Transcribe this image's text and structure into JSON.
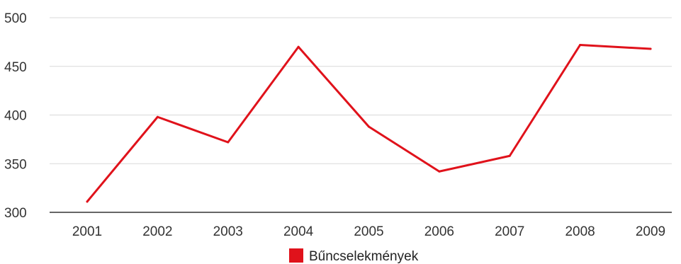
{
  "chart_data": {
    "type": "line",
    "x": [
      "2001",
      "2002",
      "2003",
      "2004",
      "2005",
      "2006",
      "2007",
      "2008",
      "2009"
    ],
    "series": [
      {
        "name": "Bűncselekmények",
        "values": [
          311,
          398,
          372,
          470,
          388,
          342,
          358,
          472,
          468
        ]
      }
    ],
    "ylim": [
      300,
      500
    ],
    "yticks": [
      300,
      350,
      400,
      450,
      500
    ],
    "grid": true,
    "legend_position": "bottom",
    "colors": {
      "series": "#e0121b",
      "grid": "#d9d9d9",
      "axis": "#333333"
    }
  }
}
